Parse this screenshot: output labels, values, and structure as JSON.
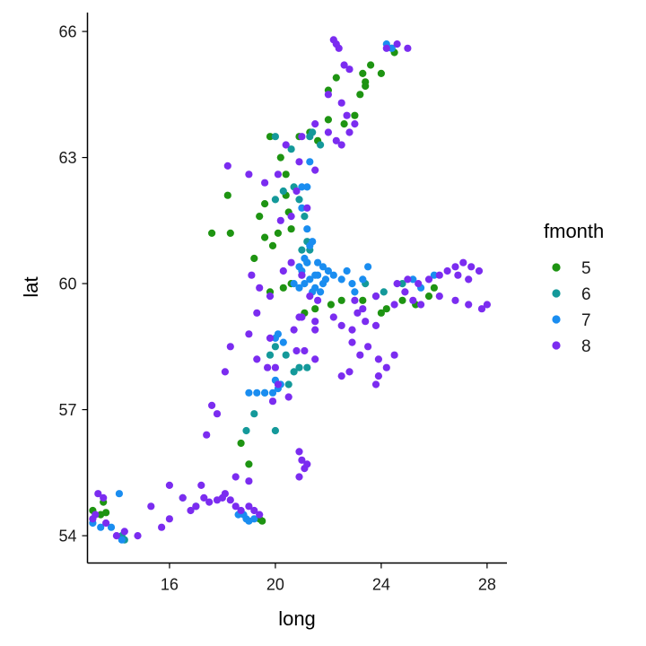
{
  "chart_data": {
    "type": "scatter",
    "title": "",
    "xlabel": "long",
    "ylabel": "lat",
    "xlim": [
      12.9,
      28.75
    ],
    "ylim": [
      53.35,
      66.45
    ],
    "xticks": [
      16,
      20,
      24,
      28
    ],
    "yticks": [
      54,
      57,
      60,
      63,
      66
    ],
    "grid": false,
    "legend": {
      "title": "fmonth",
      "placement": "right"
    },
    "series": [
      {
        "name": "5",
        "color": "#1E9412",
        "points": [
          [
            13.1,
            54.6
          ],
          [
            13.4,
            54.5
          ],
          [
            13.6,
            54.55
          ],
          [
            13.5,
            54.8
          ],
          [
            19.4,
            54.4
          ],
          [
            19.5,
            54.35
          ],
          [
            19.0,
            55.7
          ],
          [
            18.7,
            56.2
          ],
          [
            21.1,
            59.3
          ],
          [
            21.5,
            59.4
          ],
          [
            22.1,
            59.5
          ],
          [
            22.5,
            59.6
          ],
          [
            23.3,
            59.6
          ],
          [
            24.0,
            59.3
          ],
          [
            24.2,
            59.4
          ],
          [
            24.8,
            59.6
          ],
          [
            25.3,
            59.5
          ],
          [
            25.8,
            59.7
          ],
          [
            26.0,
            59.9
          ],
          [
            19.8,
            59.8
          ],
          [
            20.3,
            59.9
          ],
          [
            20.6,
            60.0
          ],
          [
            19.2,
            60.6
          ],
          [
            19.6,
            61.1
          ],
          [
            19.9,
            60.9
          ],
          [
            20.1,
            61.2
          ],
          [
            20.6,
            61.3
          ],
          [
            20.5,
            61.7
          ],
          [
            19.4,
            61.6
          ],
          [
            19.6,
            61.9
          ],
          [
            20.4,
            62.1
          ],
          [
            17.6,
            61.2
          ],
          [
            18.3,
            61.2
          ],
          [
            18.2,
            62.1
          ],
          [
            20.2,
            63.0
          ],
          [
            20.4,
            62.6
          ],
          [
            20.9,
            63.5
          ],
          [
            21.3,
            63.6
          ],
          [
            21.6,
            63.4
          ],
          [
            19.8,
            63.5
          ],
          [
            22.0,
            63.9
          ],
          [
            22.6,
            63.8
          ],
          [
            23.0,
            64.0
          ],
          [
            23.2,
            64.5
          ],
          [
            23.4,
            64.8
          ],
          [
            23.4,
            64.7
          ],
          [
            23.3,
            65.0
          ],
          [
            23.6,
            65.2
          ],
          [
            24.0,
            65.0
          ],
          [
            22.3,
            64.9
          ],
          [
            22.0,
            64.6
          ],
          [
            24.4,
            65.6
          ],
          [
            24.5,
            65.5
          ]
        ]
      },
      {
        "name": "6",
        "color": "#14999A",
        "points": [
          [
            14.3,
            53.9
          ],
          [
            14.2,
            54.0
          ],
          [
            16.5,
            54.9
          ],
          [
            17.0,
            54.7
          ],
          [
            18.9,
            56.5
          ],
          [
            19.2,
            56.9
          ],
          [
            19.6,
            57.4
          ],
          [
            20.0,
            56.5
          ],
          [
            20.5,
            57.6
          ],
          [
            20.7,
            57.9
          ],
          [
            20.9,
            58.0
          ],
          [
            21.2,
            58.0
          ],
          [
            19.8,
            58.3
          ],
          [
            20.0,
            58.5
          ],
          [
            20.4,
            58.3
          ],
          [
            21.0,
            60.2
          ],
          [
            21.2,
            60.5
          ],
          [
            21.0,
            60.8
          ],
          [
            21.3,
            60.8
          ],
          [
            21.2,
            61.0
          ],
          [
            21.1,
            61.6
          ],
          [
            20.9,
            62.0
          ],
          [
            20.7,
            62.3
          ],
          [
            20.0,
            63.5
          ],
          [
            20.6,
            63.2
          ],
          [
            21.3,
            63.5
          ],
          [
            21.4,
            63.6
          ],
          [
            21.7,
            63.3
          ],
          [
            23.4,
            60.0
          ],
          [
            23.8,
            59.7
          ],
          [
            24.1,
            59.8
          ],
          [
            24.8,
            60.0
          ],
          [
            20.3,
            62.2
          ],
          [
            20.0,
            62.0
          ]
        ]
      },
      {
        "name": "7",
        "color": "#1A8DF0",
        "points": [
          [
            13.1,
            54.3
          ],
          [
            13.4,
            54.2
          ],
          [
            13.8,
            54.2
          ],
          [
            14.1,
            55.0
          ],
          [
            14.2,
            53.9
          ],
          [
            18.9,
            54.4
          ],
          [
            19.0,
            54.35
          ],
          [
            19.2,
            54.4
          ],
          [
            18.8,
            54.5
          ],
          [
            18.6,
            54.5
          ],
          [
            19.0,
            57.4
          ],
          [
            19.3,
            57.4
          ],
          [
            19.6,
            57.4
          ],
          [
            19.9,
            57.4
          ],
          [
            20.1,
            57.5
          ],
          [
            20.0,
            57.7
          ],
          [
            20.2,
            57.6
          ],
          [
            20.0,
            58.7
          ],
          [
            20.1,
            58.8
          ],
          [
            20.3,
            58.6
          ],
          [
            20.7,
            60.0
          ],
          [
            20.9,
            59.9
          ],
          [
            21.1,
            60.0
          ],
          [
            21.3,
            60.1
          ],
          [
            21.0,
            60.3
          ],
          [
            21.5,
            60.2
          ],
          [
            21.6,
            60.5
          ],
          [
            21.8,
            60.4
          ],
          [
            22.0,
            60.3
          ],
          [
            22.2,
            60.2
          ],
          [
            22.5,
            60.1
          ],
          [
            22.7,
            60.3
          ],
          [
            22.9,
            60.0
          ],
          [
            23.0,
            59.8
          ],
          [
            23.3,
            60.1
          ],
          [
            23.5,
            60.4
          ],
          [
            21.2,
            60.5
          ],
          [
            21.5,
            59.9
          ],
          [
            21.7,
            59.8
          ],
          [
            21.8,
            60.0
          ],
          [
            20.9,
            60.4
          ],
          [
            21.1,
            60.6
          ],
          [
            21.3,
            60.9
          ],
          [
            21.4,
            61.0
          ],
          [
            21.2,
            61.3
          ],
          [
            21.0,
            61.8
          ],
          [
            21.0,
            62.3
          ],
          [
            21.2,
            62.3
          ],
          [
            21.3,
            62.9
          ],
          [
            21.4,
            59.8
          ],
          [
            21.6,
            60.2
          ],
          [
            21.9,
            60.1
          ],
          [
            24.2,
            65.7
          ],
          [
            24.4,
            65.6
          ],
          [
            25.2,
            60.1
          ],
          [
            26.0,
            60.2
          ],
          [
            25.5,
            59.9
          ]
        ]
      },
      {
        "name": "8",
        "color": "#7B2CF0",
        "points": [
          [
            13.1,
            54.4
          ],
          [
            13.2,
            54.5
          ],
          [
            13.3,
            55.0
          ],
          [
            13.5,
            54.9
          ],
          [
            13.6,
            54.3
          ],
          [
            14.0,
            54.0
          ],
          [
            14.3,
            54.1
          ],
          [
            14.8,
            54.0
          ],
          [
            15.3,
            54.7
          ],
          [
            15.7,
            54.2
          ],
          [
            16.0,
            55.2
          ],
          [
            16.0,
            54.4
          ],
          [
            16.5,
            54.9
          ],
          [
            16.8,
            54.6
          ],
          [
            17.0,
            54.7
          ],
          [
            17.3,
            54.9
          ],
          [
            17.5,
            54.8
          ],
          [
            17.8,
            54.85
          ],
          [
            18.0,
            54.9
          ],
          [
            18.3,
            54.85
          ],
          [
            18.5,
            54.7
          ],
          [
            18.7,
            54.6
          ],
          [
            19.0,
            54.7
          ],
          [
            19.2,
            54.6
          ],
          [
            19.4,
            54.5
          ],
          [
            17.2,
            55.2
          ],
          [
            18.1,
            55.0
          ],
          [
            18.5,
            55.4
          ],
          [
            19.0,
            55.3
          ],
          [
            17.4,
            56.4
          ],
          [
            17.8,
            56.9
          ],
          [
            17.6,
            57.1
          ],
          [
            18.1,
            57.9
          ],
          [
            18.3,
            58.5
          ],
          [
            19.0,
            58.8
          ],
          [
            19.3,
            58.2
          ],
          [
            19.7,
            58.0
          ],
          [
            20.0,
            58.0
          ],
          [
            19.9,
            57.2
          ],
          [
            20.5,
            57.3
          ],
          [
            20.1,
            57.6
          ],
          [
            20.8,
            58.4
          ],
          [
            21.1,
            58.4
          ],
          [
            21.5,
            58.2
          ],
          [
            20.7,
            58.9
          ],
          [
            21.0,
            59.2
          ],
          [
            21.5,
            59.1
          ],
          [
            20.9,
            56.0
          ],
          [
            21.0,
            55.8
          ],
          [
            21.1,
            55.6
          ],
          [
            21.2,
            55.7
          ],
          [
            20.9,
            55.4
          ],
          [
            19.1,
            60.2
          ],
          [
            19.4,
            59.9
          ],
          [
            19.8,
            59.7
          ],
          [
            20.3,
            60.3
          ],
          [
            20.6,
            60.5
          ],
          [
            21.0,
            60.2
          ],
          [
            21.3,
            59.7
          ],
          [
            21.6,
            59.6
          ],
          [
            22.2,
            59.2
          ],
          [
            22.5,
            59.0
          ],
          [
            23.0,
            59.6
          ],
          [
            23.3,
            59.4
          ],
          [
            23.8,
            59.7
          ],
          [
            24.5,
            59.5
          ],
          [
            24.9,
            59.8
          ],
          [
            25.2,
            59.6
          ],
          [
            25.5,
            59.5
          ],
          [
            26.2,
            59.7
          ],
          [
            26.8,
            59.6
          ],
          [
            27.3,
            59.5
          ],
          [
            27.8,
            59.4
          ],
          [
            28.0,
            59.5
          ],
          [
            24.6,
            60.0
          ],
          [
            25.0,
            60.1
          ],
          [
            25.4,
            60.0
          ],
          [
            25.8,
            60.1
          ],
          [
            26.2,
            60.2
          ],
          [
            26.5,
            60.3
          ],
          [
            26.8,
            60.4
          ],
          [
            27.1,
            60.5
          ],
          [
            27.4,
            60.4
          ],
          [
            27.7,
            60.3
          ],
          [
            27.3,
            60.1
          ],
          [
            26.9,
            60.2
          ],
          [
            19.3,
            59.3
          ],
          [
            19.8,
            58.7
          ],
          [
            20.9,
            59.2
          ],
          [
            21.5,
            58.9
          ],
          [
            22.9,
            58.6
          ],
          [
            23.2,
            58.3
          ],
          [
            23.5,
            58.5
          ],
          [
            23.9,
            58.2
          ],
          [
            24.2,
            58.0
          ],
          [
            24.5,
            58.3
          ],
          [
            23.9,
            57.8
          ],
          [
            23.8,
            57.6
          ],
          [
            22.5,
            57.8
          ],
          [
            22.8,
            57.9
          ],
          [
            23.4,
            59.1
          ],
          [
            23.8,
            59.0
          ],
          [
            20.2,
            61.5
          ],
          [
            20.6,
            61.6
          ],
          [
            20.8,
            62.2
          ],
          [
            21.2,
            61.8
          ],
          [
            19.0,
            62.6
          ],
          [
            18.2,
            62.8
          ],
          [
            19.6,
            62.4
          ],
          [
            20.1,
            62.6
          ],
          [
            20.9,
            62.9
          ],
          [
            21.5,
            62.7
          ],
          [
            20.4,
            63.3
          ],
          [
            21.0,
            63.5
          ],
          [
            21.5,
            63.8
          ],
          [
            22.0,
            63.6
          ],
          [
            22.3,
            63.4
          ],
          [
            22.5,
            63.3
          ],
          [
            23.0,
            63.8
          ],
          [
            22.8,
            63.6
          ],
          [
            22.5,
            64.3
          ],
          [
            22.7,
            64.0
          ],
          [
            22.0,
            64.5
          ],
          [
            22.8,
            65.1
          ],
          [
            22.6,
            65.2
          ],
          [
            22.2,
            65.8
          ],
          [
            22.4,
            65.6
          ],
          [
            22.3,
            65.7
          ],
          [
            24.2,
            65.6
          ],
          [
            24.6,
            65.7
          ],
          [
            25.0,
            65.6
          ],
          [
            22.9,
            58.9
          ],
          [
            23.1,
            59.3
          ]
        ]
      }
    ]
  }
}
